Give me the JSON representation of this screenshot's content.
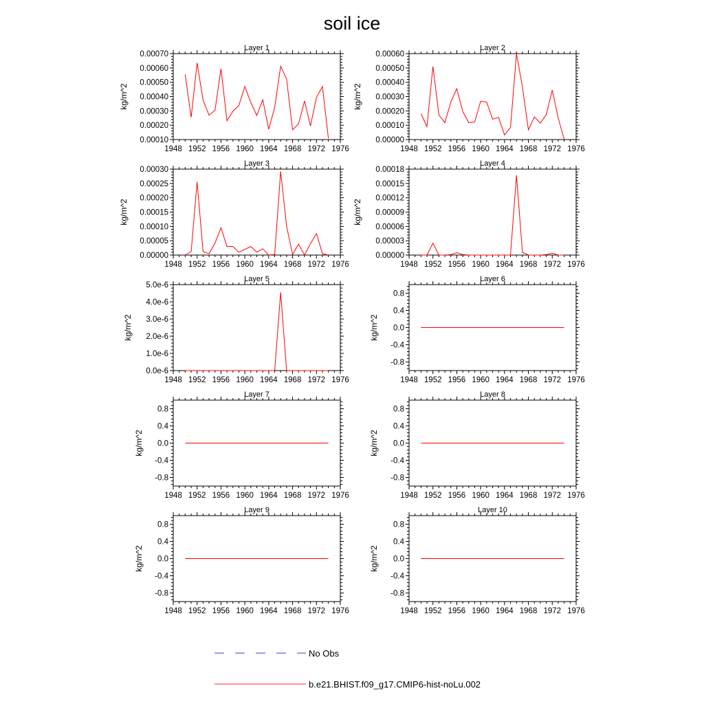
{
  "figure": {
    "title": "soil ice"
  },
  "legend": {
    "entries": [
      {
        "label": "No Obs",
        "style": "dashed",
        "color": "#3b3bd6"
      },
      {
        "label": "b.e21.BHIST.f09_g17.CMIP6-hist-noLu.002",
        "style": "solid",
        "color": "#ff2a2a"
      }
    ]
  },
  "colors": {
    "series": "#ff0000",
    "axes": "#000000"
  },
  "chart_data": [
    {
      "type": "line",
      "title": "Layer 1",
      "ylabel": "kg/m^2",
      "xlabel": "",
      "xlim": [
        1948,
        1976
      ],
      "ylim": [
        0.0001,
        0.0007
      ],
      "xticks": [
        "1948",
        "1952",
        "1956",
        "1960",
        "1964",
        "1968",
        "1972",
        "1976"
      ],
      "yticks": [
        "0.00010",
        "0.00020",
        "0.00030",
        "0.00040",
        "0.00050",
        "0.00060",
        "0.00070"
      ],
      "x": [
        1950,
        1951,
        1952,
        1953,
        1954,
        1955,
        1956,
        1957,
        1958,
        1959,
        1960,
        1961,
        1962,
        1963,
        1964,
        1965,
        1966,
        1967,
        1968,
        1969,
        1970,
        1971,
        1972,
        1973,
        1974
      ],
      "series": [
        {
          "name": "b.e21.BHIST.f09_g17.CMIP6-hist-noLu.002",
          "values": [
            0.000555,
            0.000255,
            0.000635,
            0.000375,
            0.00027,
            0.000305,
            0.000595,
            0.000232,
            0.000298,
            0.000338,
            0.00047,
            0.000358,
            0.000268,
            0.000378,
            0.000172,
            0.000325,
            0.000612,
            0.000522,
            0.000168,
            0.00021,
            0.00037,
            0.000195,
            0.000395,
            0.00047,
            0.000108
          ]
        }
      ]
    },
    {
      "type": "line",
      "title": "Layer 2",
      "ylabel": "kg/m^2",
      "xlabel": "",
      "xlim": [
        1948,
        1976
      ],
      "ylim": [
        0,
        0.0006
      ],
      "xticks": [
        "1948",
        "1952",
        "1956",
        "1960",
        "1964",
        "1968",
        "1972",
        "1976"
      ],
      "yticks": [
        "0.00000",
        "0.00010",
        "0.00020",
        "0.00030",
        "0.00040",
        "0.00050",
        "0.00060"
      ],
      "x": [
        1950,
        1951,
        1952,
        1953,
        1954,
        1955,
        1956,
        1957,
        1958,
        1959,
        1960,
        1961,
        1962,
        1963,
        1964,
        1965,
        1966,
        1967,
        1968,
        1969,
        1970,
        1971,
        1972,
        1973,
        1974
      ],
      "series": [
        {
          "name": "b.e21.BHIST.f09_g17.CMIP6-hist-noLu.002",
          "values": [
            0.00018,
            9e-05,
            0.00051,
            0.000172,
            0.000118,
            0.000262,
            0.000355,
            0.000196,
            0.000118,
            0.000122,
            0.000268,
            0.000262,
            0.000142,
            0.000155,
            3.2e-05,
            8.5e-05,
            0.0006,
            0.000368,
            6.8e-05,
            0.000158,
            0.000115,
            0.000175,
            0.000345,
            0.00015,
            2e-06
          ]
        }
      ]
    },
    {
      "type": "line",
      "title": "Layer 3",
      "ylabel": "kg/m^2",
      "xlabel": "",
      "xlim": [
        1948,
        1976
      ],
      "ylim": [
        0,
        0.0003
      ],
      "xticks": [
        "1948",
        "1952",
        "1956",
        "1960",
        "1964",
        "1968",
        "1972",
        "1976"
      ],
      "yticks": [
        "0.00000",
        "0.00005",
        "0.00010",
        "0.00015",
        "0.00020",
        "0.00025",
        "0.00030"
      ],
      "x": [
        1950,
        1951,
        1952,
        1953,
        1954,
        1955,
        1956,
        1957,
        1958,
        1959,
        1960,
        1961,
        1962,
        1963,
        1964,
        1965,
        1966,
        1967,
        1968,
        1969,
        1970,
        1971,
        1972,
        1973,
        1974
      ],
      "series": [
        {
          "name": "b.e21.BHIST.f09_g17.CMIP6-hist-noLu.002",
          "values": [
            0.0,
            1.2e-05,
            0.000255,
            1.2e-05,
            5e-06,
            4.2e-05,
            9.5e-05,
            3e-05,
            3e-05,
            1e-05,
            2e-05,
            3e-05,
            1e-05,
            2.2e-05,
            0.0,
            2e-06,
            0.000292,
            0.0001,
            2e-06,
            3.8e-05,
            0.0,
            4e-05,
            7.5e-05,
            5e-06,
            0.0
          ]
        }
      ]
    },
    {
      "type": "line",
      "title": "Layer 4",
      "ylabel": "kg/m^2",
      "xlabel": "",
      "xlim": [
        1948,
        1976
      ],
      "ylim": [
        0,
        0.00018
      ],
      "xticks": [
        "1948",
        "1952",
        "1956",
        "1960",
        "1964",
        "1968",
        "1972",
        "1976"
      ],
      "yticks": [
        "0.00000",
        "0.00003",
        "0.00006",
        "0.00009",
        "0.00012",
        "0.00015",
        "0.00018"
      ],
      "x": [
        1950,
        1951,
        1952,
        1953,
        1954,
        1955,
        1956,
        1957,
        1958,
        1959,
        1960,
        1961,
        1962,
        1963,
        1964,
        1965,
        1966,
        1967,
        1968,
        1969,
        1970,
        1971,
        1972,
        1973,
        1974
      ],
      "series": [
        {
          "name": "b.e21.BHIST.f09_g17.CMIP6-hist-noLu.002",
          "values": [
            0.0,
            0.0,
            2.5e-05,
            0.0,
            0.0,
            1e-06,
            5e-06,
            1e-06,
            0.0,
            0.0,
            0.0,
            0.0,
            0.0,
            0.0,
            0.0,
            0.0,
            0.000167,
            6e-06,
            0.0,
            0.0,
            0.0,
            1e-06,
            4e-06,
            0.0,
            0.0
          ]
        }
      ]
    },
    {
      "type": "line",
      "title": "Layer 5",
      "ylabel": "kg/m^2",
      "xlabel": "",
      "xlim": [
        1948,
        1976
      ],
      "ylim": [
        0,
        5e-06
      ],
      "xticks": [
        "1948",
        "1952",
        "1956",
        "1960",
        "1964",
        "1968",
        "1972",
        "1976"
      ],
      "yticks": [
        "0.0e-6",
        "1.0e-6",
        "2.0e-6",
        "3.0e-6",
        "4.0e-6",
        "5.0e-6"
      ],
      "x": [
        1950,
        1951,
        1952,
        1953,
        1954,
        1955,
        1956,
        1957,
        1958,
        1959,
        1960,
        1961,
        1962,
        1963,
        1964,
        1965,
        1966,
        1967,
        1968,
        1969,
        1970,
        1971,
        1972,
        1973,
        1974
      ],
      "series": [
        {
          "name": "b.e21.BHIST.f09_g17.CMIP6-hist-noLu.002",
          "values": [
            0,
            0,
            0,
            0,
            0,
            0,
            0,
            0,
            0,
            0,
            0,
            0,
            0,
            0,
            0,
            0,
            4.55e-06,
            0,
            0,
            0,
            0,
            0,
            0,
            0,
            0
          ]
        }
      ]
    },
    {
      "type": "line",
      "title": "Layer 6",
      "ylabel": "kg/m^2",
      "xlabel": "",
      "xlim": [
        1948,
        1976
      ],
      "ylim": [
        -1,
        1
      ],
      "xticks": [
        "1948",
        "1952",
        "1956",
        "1960",
        "1964",
        "1968",
        "1972",
        "1976"
      ],
      "yticks": [
        "-0.8",
        "-0.4",
        "0.0",
        "0.4",
        "0.8"
      ],
      "x": [
        1950,
        1974
      ],
      "series": [
        {
          "name": "b.e21.BHIST.f09_g17.CMIP6-hist-noLu.002",
          "values": [
            0,
            0
          ]
        }
      ]
    },
    {
      "type": "line",
      "title": "Layer 7",
      "ylabel": "kg/m^2",
      "xlabel": "",
      "xlim": [
        1948,
        1976
      ],
      "ylim": [
        -1,
        1
      ],
      "xticks": [
        "1948",
        "1952",
        "1956",
        "1960",
        "1964",
        "1968",
        "1972",
        "1976"
      ],
      "yticks": [
        "-0.8",
        "-0.4",
        "0.0",
        "0.4",
        "0.8"
      ],
      "x": [
        1950,
        1974
      ],
      "series": [
        {
          "name": "b.e21.BHIST.f09_g17.CMIP6-hist-noLu.002",
          "values": [
            0,
            0
          ]
        }
      ]
    },
    {
      "type": "line",
      "title": "Layer 8",
      "ylabel": "kg/m^2",
      "xlabel": "",
      "xlim": [
        1948,
        1976
      ],
      "ylim": [
        -1,
        1
      ],
      "xticks": [
        "1948",
        "1952",
        "1956",
        "1960",
        "1964",
        "1968",
        "1972",
        "1976"
      ],
      "yticks": [
        "-0.8",
        "-0.4",
        "0.0",
        "0.4",
        "0.8"
      ],
      "x": [
        1950,
        1974
      ],
      "series": [
        {
          "name": "b.e21.BHIST.f09_g17.CMIP6-hist-noLu.002",
          "values": [
            0,
            0
          ]
        }
      ]
    },
    {
      "type": "line",
      "title": "Layer 9",
      "ylabel": "kg/m^2",
      "xlabel": "",
      "xlim": [
        1948,
        1976
      ],
      "ylim": [
        -1,
        1
      ],
      "xticks": [
        "1948",
        "1952",
        "1956",
        "1960",
        "1964",
        "1968",
        "1972",
        "1976"
      ],
      "yticks": [
        "-0.8",
        "-0.4",
        "0.0",
        "0.4",
        "0.8"
      ],
      "x": [
        1950,
        1974
      ],
      "series": [
        {
          "name": "b.e21.BHIST.f09_g17.CMIP6-hist-noLu.002",
          "values": [
            0,
            0
          ]
        }
      ]
    },
    {
      "type": "line",
      "title": "Layer 10",
      "ylabel": "kg/m^2",
      "xlabel": "",
      "xlim": [
        1948,
        1976
      ],
      "ylim": [
        -1,
        1
      ],
      "xticks": [
        "1948",
        "1952",
        "1956",
        "1960",
        "1964",
        "1968",
        "1972",
        "1976"
      ],
      "yticks": [
        "-0.8",
        "-0.4",
        "0.0",
        "0.4",
        "0.8"
      ],
      "x": [
        1950,
        1974
      ],
      "series": [
        {
          "name": "b.e21.BHIST.f09_g17.CMIP6-hist-noLu.002",
          "values": [
            0,
            0
          ]
        }
      ]
    }
  ]
}
